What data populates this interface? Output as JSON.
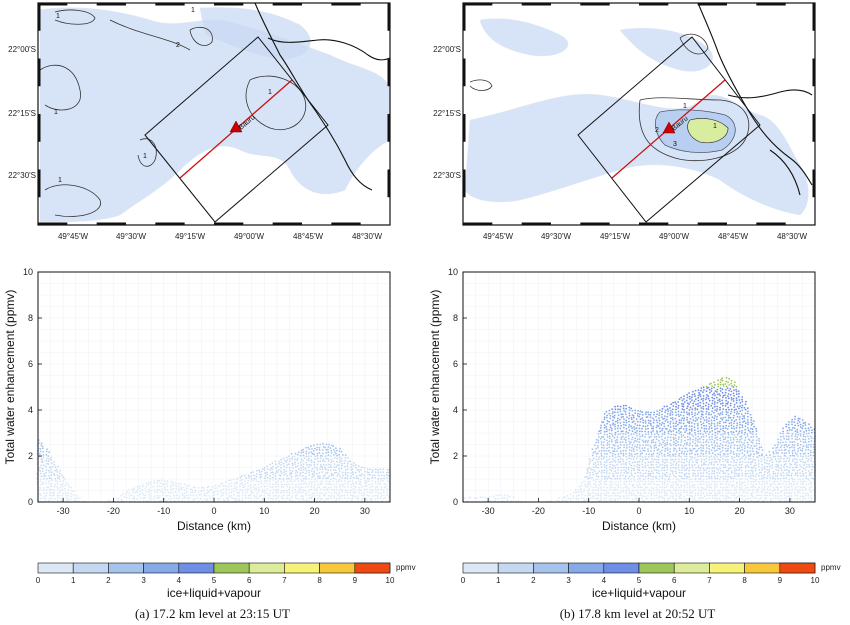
{
  "colorbar": {
    "unit": "ppmv",
    "label": "ice+liquid+vapour",
    "ticks": [
      "0",
      "1",
      "2",
      "3",
      "4",
      "5",
      "6",
      "7",
      "8",
      "9",
      "10"
    ],
    "colors": [
      "#dce8f6",
      "#c4d8f2",
      "#a6c3ee",
      "#86a9ea",
      "#6f8fe6",
      "#9ec75a",
      "#dcec9a",
      "#f6f27a",
      "#f8c83c",
      "#f5961e",
      "#ee4a12"
    ]
  },
  "map": {
    "lon_ticks": [
      "49°45'W",
      "49°30'W",
      "49°15'W",
      "49°00'W",
      "48°45'W",
      "48°30'W"
    ],
    "lat_ticks": [
      "22°00'S",
      "22°15'S",
      "22°30'S"
    ],
    "site_label": "Bauru"
  },
  "panels": [
    {
      "caption": "(a) 17.2 km level at 23:15 UT",
      "contour_labels": [
        "1",
        "2",
        "1",
        "1",
        "1",
        "1",
        "1"
      ],
      "chart_data": {
        "type": "scatter",
        "xlabel": "Distance (km)",
        "ylabel": "Total water enhancement (ppmv)",
        "xlim": [
          -35,
          35
        ],
        "ylim": [
          0,
          10
        ],
        "x_ticks": [
          "-30",
          "-20",
          "-10",
          "0",
          "10",
          "20",
          "30"
        ],
        "y_ticks": [
          "0",
          "2",
          "4",
          "6",
          "8",
          "10"
        ],
        "grid": true,
        "envelope": {
          "x": [
            -35,
            -33,
            -31,
            -29,
            -27,
            -25,
            -23,
            -21,
            -19,
            -17,
            -15,
            -13,
            -11,
            -9,
            -7,
            -5,
            -3,
            -1,
            1,
            3,
            5,
            7,
            9,
            11,
            13,
            15,
            17,
            19,
            21,
            23,
            25,
            27,
            29,
            31,
            33,
            35
          ],
          "y": [
            2.8,
            2.3,
            1.6,
            0.9,
            0.3,
            0,
            0,
            0,
            0.3,
            0.6,
            0.8,
            0.95,
            1.05,
            1.0,
            0.9,
            0.8,
            0.7,
            0.75,
            0.85,
            1.0,
            1.15,
            1.3,
            1.5,
            1.7,
            1.9,
            2.1,
            2.3,
            2.5,
            2.6,
            2.6,
            2.4,
            1.9,
            1.6,
            1.5,
            1.5,
            1.5
          ]
        }
      }
    },
    {
      "caption": "(b) 17.8 km level at 20:52 UT",
      "contour_labels": [
        "1",
        "2",
        "3",
        "1"
      ],
      "chart_data": {
        "type": "scatter",
        "xlabel": "Distance (km)",
        "ylabel": "Total water enhancement (ppmv)",
        "xlim": [
          -35,
          35
        ],
        "ylim": [
          0,
          10
        ],
        "x_ticks": [
          "-30",
          "-20",
          "-10",
          "0",
          "10",
          "20",
          "30"
        ],
        "y_ticks": [
          "0",
          "2",
          "4",
          "6",
          "8",
          "10"
        ],
        "grid": true,
        "envelope": {
          "x": [
            -35,
            -33,
            -31,
            -29,
            -27,
            -25,
            -23,
            -21,
            -19,
            -17,
            -15,
            -13,
            -11,
            -9,
            -7,
            -5,
            -3,
            -1,
            1,
            3,
            5,
            7,
            9,
            11,
            13,
            15,
            17,
            19,
            21,
            23,
            25,
            27,
            29,
            31,
            33,
            35
          ],
          "y": [
            0.3,
            0.3,
            0.3,
            0.35,
            0.4,
            0.3,
            0,
            0,
            0,
            0.15,
            0.3,
            0.5,
            1.0,
            2.5,
            3.9,
            4.2,
            4.3,
            4.1,
            4.0,
            4.0,
            4.2,
            4.4,
            4.7,
            4.9,
            5.1,
            5.3,
            5.5,
            5.3,
            4.5,
            3.5,
            2.0,
            2.5,
            3.4,
            3.8,
            3.6,
            3.2
          ]
        }
      }
    }
  ]
}
